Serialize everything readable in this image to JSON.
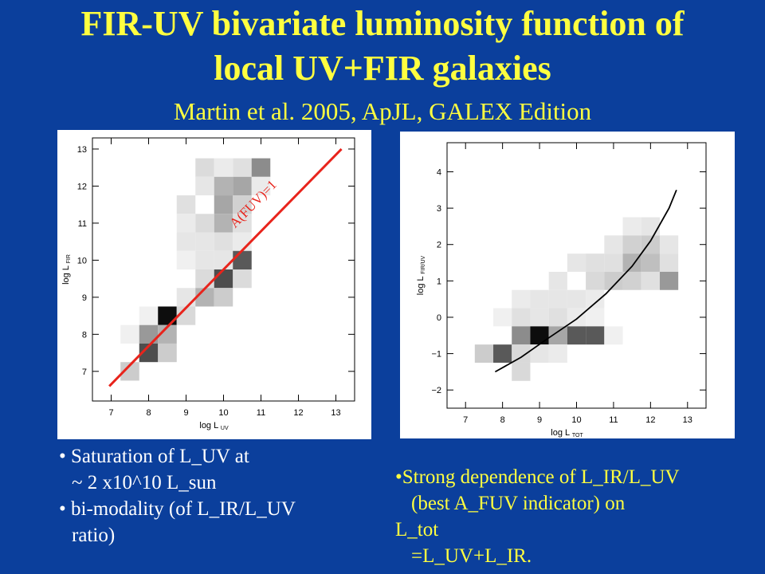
{
  "title_line1": "FIR-UV bivariate luminosity function of",
  "title_line2": "local UV+FIR galaxies",
  "subtitle": "Martin et al. 2005, ApJL, GALEX Edition",
  "notes_left": [
    "• Saturation of L_UV at",
    "~ 2 x10^10 L_sun",
    "• bi-modality (of L_IR/L_UV",
    "ratio)"
  ],
  "notes_right": [
    "•Strong dependence of L_IR/L_UV",
    "(best A_FUV indicator) on",
    "L_tot",
    "=L_UV+L_IR."
  ],
  "chart_data": [
    {
      "type": "heatmap",
      "xlabel_main": "log L",
      "xlabel_sub": "UV",
      "ylabel_main": "log L",
      "ylabel_sub": "FIR",
      "xlim": [
        6.5,
        13.5
      ],
      "ylim": [
        6.2,
        13.3
      ],
      "xticks": [
        7,
        8,
        9,
        10,
        11,
        12,
        13
      ],
      "yticks": [
        7,
        8,
        9,
        10,
        11,
        12,
        13
      ],
      "bin_size": 0.5,
      "cells": [
        [
          9.5,
          12.5,
          0.14
        ],
        [
          10.5,
          12.5,
          0.12
        ],
        [
          10.0,
          12.5,
          0.08
        ],
        [
          11.0,
          12.5,
          0.45
        ],
        [
          9.5,
          12.0,
          0.1
        ],
        [
          10.0,
          12.0,
          0.3
        ],
        [
          10.5,
          12.0,
          0.35
        ],
        [
          11.0,
          12.0,
          0.08
        ],
        [
          9.0,
          11.5,
          0.12
        ],
        [
          10.0,
          11.5,
          0.35
        ],
        [
          10.5,
          11.5,
          0.18
        ],
        [
          9.0,
          11.0,
          0.08
        ],
        [
          9.5,
          11.0,
          0.14
        ],
        [
          10.0,
          11.0,
          0.3
        ],
        [
          10.5,
          11.0,
          0.12
        ],
        [
          9.0,
          10.5,
          0.1
        ],
        [
          9.5,
          10.5,
          0.1
        ],
        [
          10.0,
          10.5,
          0.12
        ],
        [
          10.5,
          10.5,
          0.08
        ],
        [
          9.0,
          10.0,
          0.06
        ],
        [
          9.5,
          10.0,
          0.1
        ],
        [
          10.0,
          10.0,
          0.1
        ],
        [
          10.5,
          10.0,
          0.65
        ],
        [
          9.5,
          9.5,
          0.14
        ],
        [
          10.0,
          9.5,
          0.7
        ],
        [
          10.5,
          9.5,
          0.14
        ],
        [
          9.0,
          9.0,
          0.1
        ],
        [
          9.5,
          9.0,
          0.3
        ],
        [
          10.0,
          9.0,
          0.2
        ],
        [
          8.0,
          8.5,
          0.06
        ],
        [
          8.5,
          8.5,
          0.95
        ],
        [
          9.0,
          8.5,
          0.15
        ],
        [
          7.5,
          8.0,
          0.06
        ],
        [
          8.0,
          8.0,
          0.4
        ],
        [
          8.5,
          8.0,
          0.3
        ],
        [
          8.0,
          7.5,
          0.7
        ],
        [
          8.5,
          7.5,
          0.2
        ],
        [
          7.5,
          7.0,
          0.2
        ]
      ],
      "line": {
        "label": "A(FUV)=1",
        "x": [
          6.95,
          13.15
        ],
        "y": [
          6.6,
          13.0
        ]
      }
    },
    {
      "type": "heatmap",
      "xlabel_main": "log L",
      "xlabel_sub": "TOT",
      "ylabel_main": "log L",
      "ylabel_sub": "FIR/UV",
      "xlim": [
        6.5,
        13.5
      ],
      "ylim": [
        -2.5,
        4.8
      ],
      "xticks": [
        7,
        8,
        9,
        10,
        11,
        12,
        13
      ],
      "yticks": [
        -2,
        -1,
        0,
        1,
        2,
        3,
        4
      ],
      "bin_size": 0.5,
      "cells": [
        [
          11.5,
          2.5,
          0.08
        ],
        [
          12.0,
          2.5,
          0.1
        ],
        [
          11.0,
          2.0,
          0.1
        ],
        [
          11.5,
          2.0,
          0.18
        ],
        [
          12.0,
          2.0,
          0.2
        ],
        [
          12.5,
          2.0,
          0.1
        ],
        [
          10.0,
          1.5,
          0.1
        ],
        [
          10.5,
          1.5,
          0.12
        ],
        [
          11.0,
          1.5,
          0.12
        ],
        [
          11.5,
          1.5,
          0.3
        ],
        [
          12.0,
          1.5,
          0.25
        ],
        [
          12.5,
          1.5,
          0.12
        ],
        [
          9.5,
          1.0,
          0.1
        ],
        [
          10.5,
          1.0,
          0.15
        ],
        [
          11.0,
          1.0,
          0.2
        ],
        [
          11.5,
          1.0,
          0.18
        ],
        [
          12.0,
          1.0,
          0.12
        ],
        [
          12.5,
          1.0,
          0.4
        ],
        [
          8.5,
          0.5,
          0.08
        ],
        [
          9.0,
          0.5,
          0.1
        ],
        [
          9.5,
          0.5,
          0.1
        ],
        [
          10.0,
          0.5,
          0.1
        ],
        [
          10.5,
          0.5,
          0.08
        ],
        [
          8.0,
          0.0,
          0.06
        ],
        [
          8.5,
          0.0,
          0.12
        ],
        [
          9.0,
          0.0,
          0.1
        ],
        [
          9.5,
          0.0,
          0.12
        ],
        [
          10.0,
          0.0,
          0.08
        ],
        [
          10.5,
          0.0,
          0.06
        ],
        [
          8.5,
          -0.5,
          0.45
        ],
        [
          9.0,
          -0.5,
          0.95
        ],
        [
          9.5,
          -0.5,
          0.35
        ],
        [
          10.0,
          -0.5,
          0.65
        ],
        [
          10.5,
          -0.5,
          0.65
        ],
        [
          11.0,
          -0.5,
          0.06
        ],
        [
          7.5,
          -1.0,
          0.2
        ],
        [
          8.0,
          -1.0,
          0.65
        ],
        [
          8.5,
          -1.0,
          0.15
        ],
        [
          9.0,
          -1.0,
          0.1
        ],
        [
          9.5,
          -1.0,
          0.08
        ],
        [
          8.5,
          -1.5,
          0.15
        ]
      ],
      "curve": {
        "x": [
          7.8,
          8.5,
          9.2,
          10.0,
          10.8,
          11.5,
          12.0,
          12.5,
          12.7
        ],
        "y": [
          -1.5,
          -1.1,
          -0.6,
          -0.05,
          0.65,
          1.4,
          2.1,
          3.0,
          3.5
        ]
      }
    }
  ]
}
